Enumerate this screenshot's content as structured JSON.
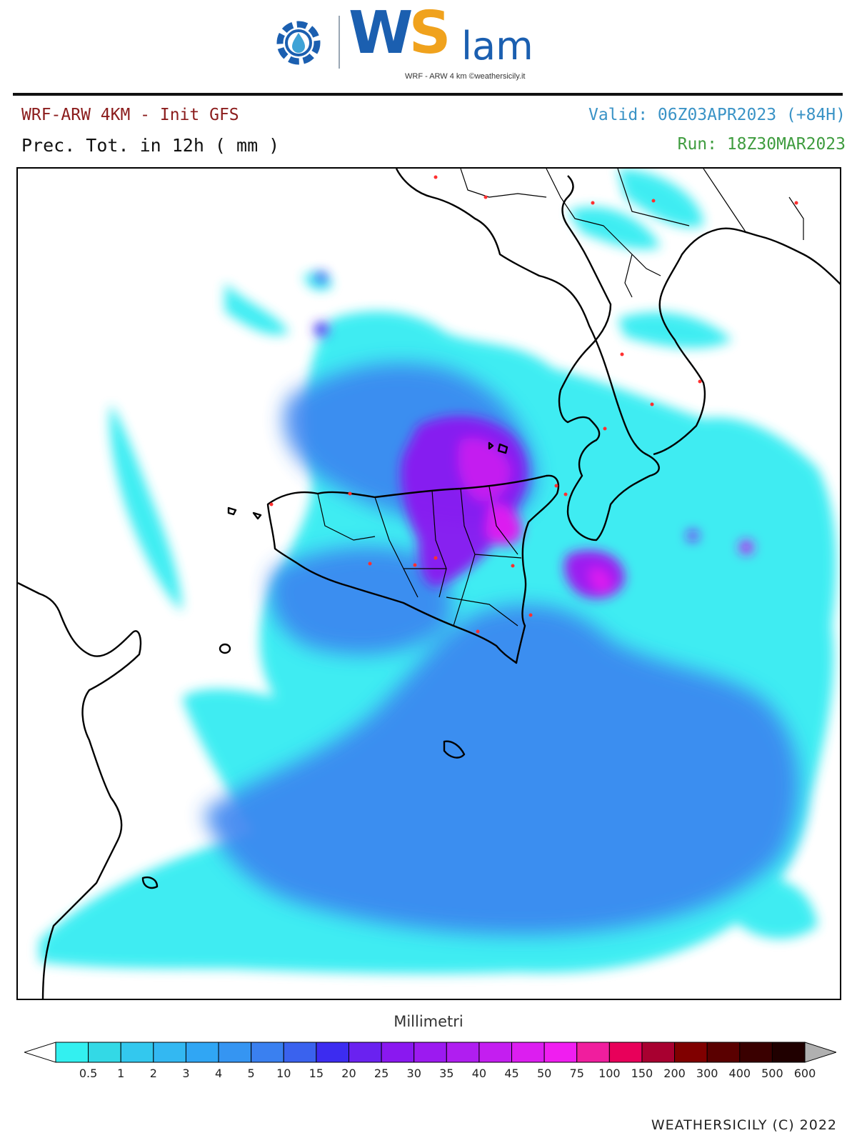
{
  "logo": {
    "brand_w": "W",
    "brand_s": "S",
    "brand_suffix": "lam",
    "tagline": "WRF - ARW 4 km ©weathersicily.it",
    "colors": {
      "blue": "#1b5fb0",
      "orange": "#f0a21d",
      "green": "#3fa34d"
    }
  },
  "header": {
    "model": "WRF-ARW 4KM - Init GFS",
    "field": "Prec. Tot. in 12h ( mm )",
    "valid": "Valid: 06Z03APR2023 (+84H)",
    "run": "Run: 18Z30MAR2023",
    "colors": {
      "model": "#8b1c1c",
      "valid": "#3a93c6",
      "run": "#3f9c3f"
    }
  },
  "map": {
    "region": "Sicily and southern Italy, central Mediterranean",
    "max_precip_area": "north-eastern Sicily and Tyrrhenian coast"
  },
  "colorbar": {
    "title": "Millimetri",
    "labels": [
      "0.5",
      "1",
      "2",
      "3",
      "4",
      "5",
      "10",
      "15",
      "20",
      "25",
      "30",
      "35",
      "40",
      "45",
      "50",
      "75",
      "100",
      "150",
      "200",
      "300",
      "400",
      "500",
      "600"
    ],
    "colors": [
      "#33f0f0",
      "#33d9e6",
      "#33c8ee",
      "#33b8f2",
      "#30a6f4",
      "#3595f2",
      "#3a80f0",
      "#3a62ee",
      "#3c2cf0",
      "#6a22f0",
      "#8a18f0",
      "#9c1af0",
      "#b01ef0",
      "#c41ef0",
      "#dc1ef0",
      "#f01ef0",
      "#f01e9e",
      "#e8005a",
      "#a80030",
      "#800000",
      "#5a0000",
      "#3a0000",
      "#200000"
    ],
    "under_color": "#ffffff",
    "over_color": "#b0b0b0"
  },
  "footer": {
    "credit": "WEATHERSICILY (C) 2022"
  }
}
